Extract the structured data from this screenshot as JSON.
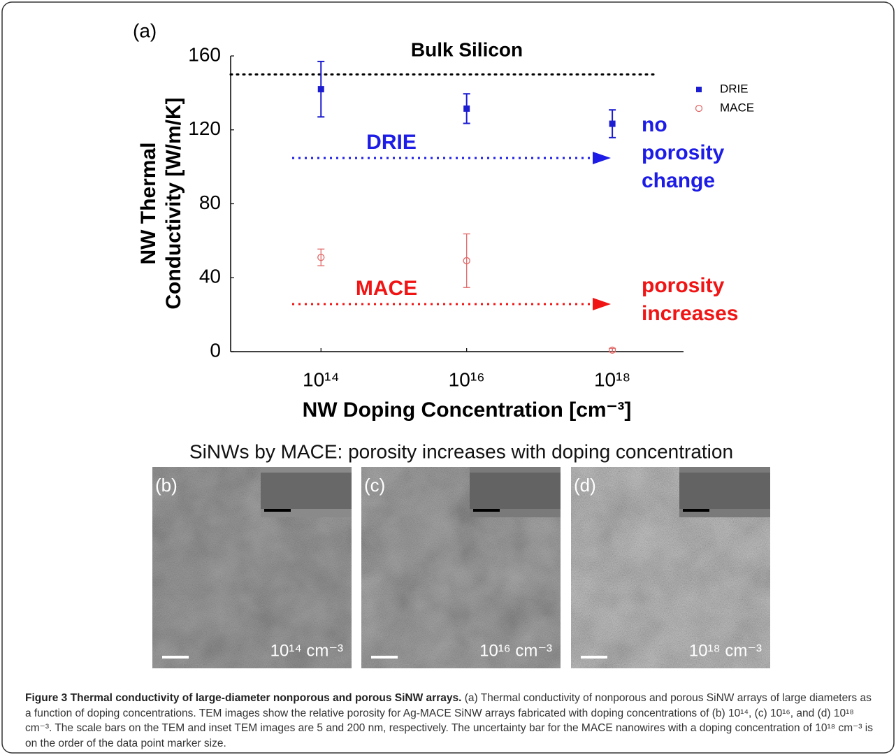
{
  "chart_data": {
    "type": "scatter",
    "panel_label": "(a)",
    "xlabel": "NW Doping Concentration [cm⁻³]",
    "ylabel": [
      "NW Thermal",
      "Conductivity [W/m/K]"
    ],
    "x": [
      100000000000000.0,
      1e+16,
      1e+18
    ],
    "xscale": "log",
    "xlim": [
      5750000000000.0,
      9.5e+18
    ],
    "xticks": [
      {
        "value": 100000000000000.0,
        "label": "10¹⁴"
      },
      {
        "value": 1e+16,
        "label": "10¹⁶"
      },
      {
        "value": 1e+18,
        "label": "10¹⁸"
      }
    ],
    "ylim": [
      0,
      160
    ],
    "yticks": [
      0,
      40,
      80,
      120,
      160
    ],
    "grid": false,
    "legend": "upper right",
    "series": [
      {
        "name": "DRIE",
        "color": "#1c1cd0",
        "marker": "square",
        "values": [
          142,
          131.5,
          123.3
        ],
        "errors": [
          15,
          8,
          7.5
        ]
      },
      {
        "name": "MACE",
        "color": "#e26a6a",
        "marker": "circle",
        "values": [
          51,
          49.2,
          0.8
        ],
        "errors": [
          4.5,
          14.5,
          1
        ]
      }
    ],
    "reference_line": {
      "value": 150,
      "label": "Bulk Silicon"
    },
    "annotations": [
      {
        "lines": [
          "DRIE"
        ],
        "color": "#1c1ce6"
      },
      {
        "lines": [
          "no",
          "porosity",
          "change"
        ],
        "color": "#1c1ce6"
      },
      {
        "lines": [
          "MACE"
        ],
        "color": "#f01414"
      },
      {
        "lines": [
          "porosity",
          "increases"
        ],
        "color": "#f01414"
      }
    ]
  },
  "heading": "SiNWs by MACE: porosity increases with doping concentration",
  "panels": [
    {
      "label": "(b)",
      "concentration": "10¹⁴ cm⁻³"
    },
    {
      "label": "(c)",
      "concentration": "10¹⁶ cm⁻³"
    },
    {
      "label": "(d)",
      "concentration": "10¹⁸ cm⁻³"
    }
  ],
  "caption": {
    "title": "Figure 3 Thermal conductivity of large-diameter nonporous and porous SiNW arrays.",
    "body": "(a) Thermal conductivity of nonporous and porous SiNW arrays of large diameters as a function of doping concentrations. TEM images show the relative porosity for Ag-MACE SiNW arrays fabricated with doping concentrations of (b) 10¹⁴, (c) 10¹⁶, and (d) 10¹⁸ cm⁻³. The scale bars on the TEM and inset TEM images are 5 and 200 nm, respectively. The uncertainty bar for the MACE nanowires with a doping concentration of 10¹⁸ cm⁻³ is on the order of the data point marker size."
  }
}
